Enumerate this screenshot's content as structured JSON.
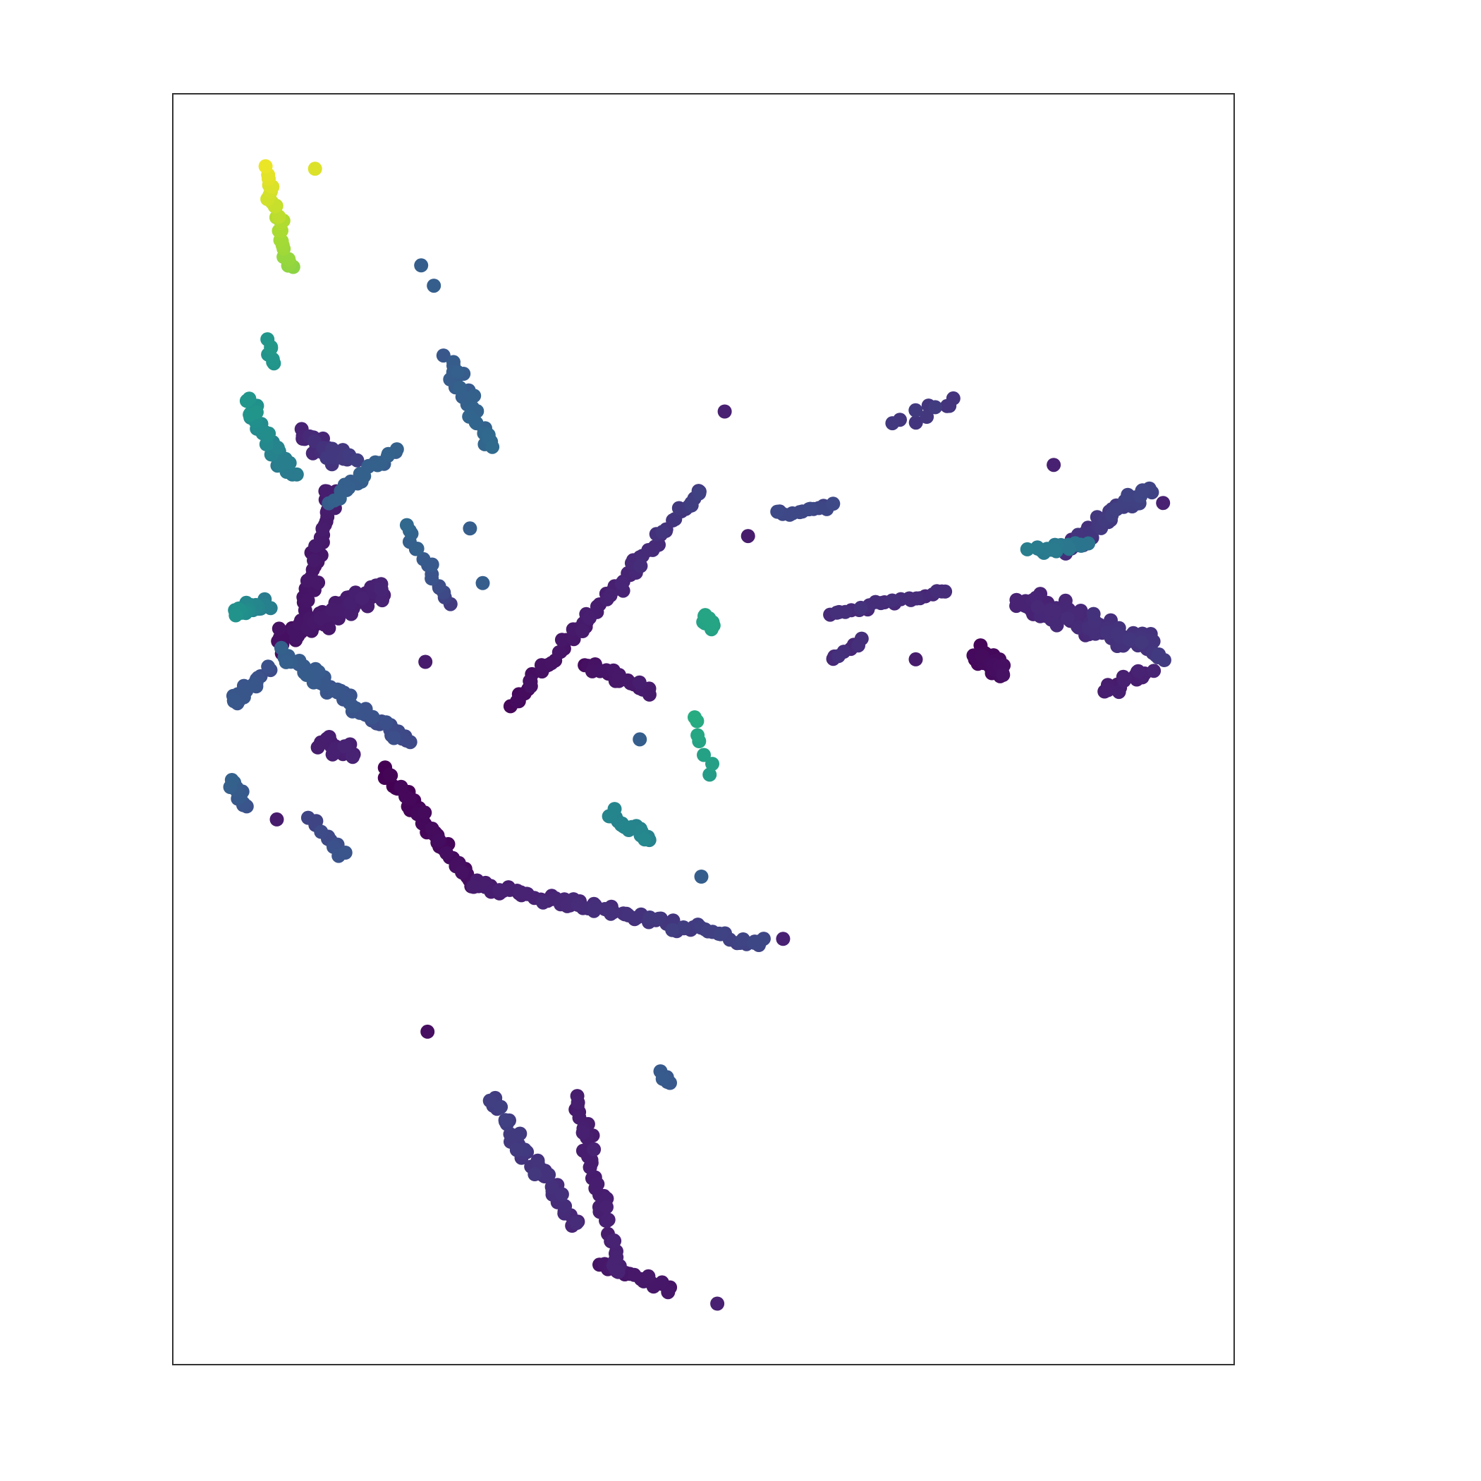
{
  "chart_data": {
    "type": "scatter",
    "title": "",
    "xlabel": "",
    "ylabel": "",
    "xlim": [
      0,
      1
    ],
    "ylim": [
      0,
      1
    ],
    "ticks": "none",
    "grid": false,
    "legend": "none",
    "colormap": "viridis",
    "colors": {
      "low": "#440154",
      "mid": "#21918c",
      "high": "#fde725",
      "axes_edge": "#333333",
      "background": "#ffffff"
    },
    "clusters": [
      {
        "name": "top-left-yellow",
        "x0": 0.087,
        "y0": 0.939,
        "x1": 0.11,
        "y1": 0.862,
        "n": 26,
        "spread": 0.007,
        "c0": 0.97,
        "c1": 0.82
      },
      {
        "name": "top-left-teal-small",
        "x0": 0.089,
        "y0": 0.807,
        "x1": 0.096,
        "y1": 0.785,
        "n": 7,
        "spread": 0.004,
        "c0": 0.52,
        "c1": 0.52
      },
      {
        "name": "left-teal-band",
        "x0": 0.07,
        "y0": 0.756,
        "x1": 0.11,
        "y1": 0.7,
        "n": 34,
        "spread": 0.01,
        "c0": 0.52,
        "c1": 0.4
      },
      {
        "name": "left-purple-upper",
        "x0": 0.12,
        "y0": 0.73,
        "x1": 0.17,
        "y1": 0.71,
        "n": 30,
        "spread": 0.01,
        "c0": 0.12,
        "c1": 0.2
      },
      {
        "name": "left-purple-stem",
        "x0": 0.15,
        "y0": 0.69,
        "x1": 0.12,
        "y1": 0.57,
        "n": 44,
        "spread": 0.009,
        "c0": 0.1,
        "c1": 0.06
      },
      {
        "name": "left-mid-blue-diag",
        "x0": 0.15,
        "y0": 0.68,
        "x1": 0.21,
        "y1": 0.72,
        "n": 22,
        "spread": 0.006,
        "c0": 0.3,
        "c1": 0.3
      },
      {
        "name": "left-dense-band",
        "x0": 0.1,
        "y0": 0.57,
        "x1": 0.2,
        "y1": 0.61,
        "n": 70,
        "spread": 0.012,
        "c0": 0.05,
        "c1": 0.12
      },
      {
        "name": "left-teal-patch",
        "x0": 0.06,
        "y0": 0.59,
        "x1": 0.09,
        "y1": 0.598,
        "n": 22,
        "spread": 0.007,
        "c0": 0.5,
        "c1": 0.42
      },
      {
        "name": "left-blue-diag",
        "x0": 0.1,
        "y0": 0.56,
        "x1": 0.22,
        "y1": 0.49,
        "n": 56,
        "spread": 0.008,
        "c0": 0.3,
        "c1": 0.22
      },
      {
        "name": "left-blue-hook",
        "x0": 0.055,
        "y0": 0.52,
        "x1": 0.09,
        "y1": 0.545,
        "n": 20,
        "spread": 0.008,
        "c0": 0.28,
        "c1": 0.24
      },
      {
        "name": "left-small-blue-drops",
        "x0": 0.055,
        "y0": 0.46,
        "x1": 0.07,
        "y1": 0.44,
        "n": 12,
        "spread": 0.006,
        "c0": 0.3,
        "c1": 0.25
      },
      {
        "name": "left-purple-lump",
        "x0": 0.14,
        "y0": 0.49,
        "x1": 0.17,
        "y1": 0.48,
        "n": 22,
        "spread": 0.01,
        "c0": 0.1,
        "c1": 0.12
      },
      {
        "name": "left-lower-twig",
        "x0": 0.13,
        "y0": 0.43,
        "x1": 0.16,
        "y1": 0.4,
        "n": 12,
        "spread": 0.006,
        "c0": 0.2,
        "c1": 0.26
      },
      {
        "name": "center-upper-blue",
        "x0": 0.26,
        "y0": 0.79,
        "x1": 0.3,
        "y1": 0.72,
        "n": 30,
        "spread": 0.009,
        "c0": 0.28,
        "c1": 0.34
      },
      {
        "name": "center-mid-teal-twig",
        "x0": 0.22,
        "y0": 0.66,
        "x1": 0.26,
        "y1": 0.6,
        "n": 16,
        "spread": 0.007,
        "c0": 0.34,
        "c1": 0.2
      },
      {
        "name": "main-s-curve-upper",
        "x0": 0.2,
        "y0": 0.47,
        "x1": 0.28,
        "y1": 0.38,
        "n": 48,
        "spread": 0.007,
        "c0": 0.0,
        "c1": 0.05
      },
      {
        "name": "main-s-curve-lower",
        "x0": 0.28,
        "y0": 0.38,
        "x1": 0.56,
        "y1": 0.33,
        "n": 90,
        "spread": 0.007,
        "c0": 0.1,
        "c1": 0.22
      },
      {
        "name": "diag-ridge",
        "x0": 0.32,
        "y0": 0.52,
        "x1": 0.5,
        "y1": 0.69,
        "n": 70,
        "spread": 0.007,
        "c0": 0.03,
        "c1": 0.2
      },
      {
        "name": "diag-ridge-branch",
        "x0": 0.39,
        "y0": 0.55,
        "x1": 0.45,
        "y1": 0.53,
        "n": 22,
        "spread": 0.006,
        "c0": 0.05,
        "c1": 0.1
      },
      {
        "name": "center-teal-spot",
        "x0": 0.5,
        "y0": 0.59,
        "x1": 0.51,
        "y1": 0.58,
        "n": 16,
        "spread": 0.006,
        "c0": 0.58,
        "c1": 0.58
      },
      {
        "name": "center-teal-low",
        "x0": 0.41,
        "y0": 0.435,
        "x1": 0.45,
        "y1": 0.41,
        "n": 20,
        "spread": 0.008,
        "c0": 0.45,
        "c1": 0.45
      },
      {
        "name": "center-green-drops",
        "x0": 0.49,
        "y0": 0.508,
        "x1": 0.505,
        "y1": 0.47,
        "n": 7,
        "spread": 0.008,
        "c0": 0.62,
        "c1": 0.55
      },
      {
        "name": "right-top-purple-chain",
        "x0": 0.57,
        "y0": 0.67,
        "x1": 0.62,
        "y1": 0.675,
        "n": 14,
        "spread": 0.004,
        "c0": 0.22,
        "c1": 0.22
      },
      {
        "name": "right-thin-dashes",
        "x0": 0.62,
        "y0": 0.59,
        "x1": 0.73,
        "y1": 0.61,
        "n": 24,
        "spread": 0.004,
        "c0": 0.15,
        "c1": 0.15
      },
      {
        "name": "right-mid-lower-dashes",
        "x0": 0.62,
        "y0": 0.555,
        "x1": 0.65,
        "y1": 0.57,
        "n": 8,
        "spread": 0.003,
        "c0": 0.15,
        "c1": 0.15
      },
      {
        "name": "right-top-small",
        "x0": 0.68,
        "y0": 0.74,
        "x1": 0.74,
        "y1": 0.76,
        "n": 10,
        "spread": 0.008,
        "c0": 0.18,
        "c1": 0.18
      },
      {
        "name": "right-upper-diag",
        "x0": 0.84,
        "y0": 0.64,
        "x1": 0.92,
        "y1": 0.69,
        "n": 48,
        "spread": 0.008,
        "c0": 0.15,
        "c1": 0.22
      },
      {
        "name": "right-teal-strip",
        "x0": 0.81,
        "y0": 0.64,
        "x1": 0.86,
        "y1": 0.645,
        "n": 20,
        "spread": 0.006,
        "c0": 0.42,
        "c1": 0.38
      },
      {
        "name": "right-main-mass",
        "x0": 0.8,
        "y0": 0.6,
        "x1": 0.93,
        "y1": 0.56,
        "n": 110,
        "spread": 0.014,
        "c0": 0.12,
        "c1": 0.18
      },
      {
        "name": "right-dense-blob",
        "x0": 0.76,
        "y0": 0.56,
        "x1": 0.78,
        "y1": 0.545,
        "n": 50,
        "spread": 0.01,
        "c0": 0.02,
        "c1": 0.05
      },
      {
        "name": "right-lower-arms",
        "x0": 0.88,
        "y0": 0.53,
        "x1": 0.92,
        "y1": 0.545,
        "n": 18,
        "spread": 0.008,
        "c0": 0.1,
        "c1": 0.12
      },
      {
        "name": "bottom-cluster-left",
        "x0": 0.3,
        "y0": 0.21,
        "x1": 0.38,
        "y1": 0.11,
        "n": 50,
        "spread": 0.01,
        "c0": 0.2,
        "c1": 0.14
      },
      {
        "name": "bottom-cluster-right",
        "x0": 0.38,
        "y0": 0.21,
        "x1": 0.42,
        "y1": 0.07,
        "n": 44,
        "spread": 0.009,
        "c0": 0.1,
        "c1": 0.12
      },
      {
        "name": "bottom-cluster-tail",
        "x0": 0.4,
        "y0": 0.08,
        "x1": 0.47,
        "y1": 0.06,
        "n": 20,
        "spread": 0.006,
        "c0": 0.08,
        "c1": 0.08
      },
      {
        "name": "bottom-upper-right",
        "x0": 0.46,
        "y0": 0.23,
        "x1": 0.47,
        "y1": 0.22,
        "n": 6,
        "spread": 0.004,
        "c0": 0.28,
        "c1": 0.28
      }
    ],
    "isolated_points": [
      {
        "x": 0.134,
        "y": 0.941,
        "c": 0.95
      },
      {
        "x": 0.234,
        "y": 0.865,
        "c": 0.3
      },
      {
        "x": 0.246,
        "y": 0.849,
        "c": 0.3
      },
      {
        "x": 0.52,
        "y": 0.75,
        "c": 0.12
      },
      {
        "x": 0.542,
        "y": 0.652,
        "c": 0.1
      },
      {
        "x": 0.83,
        "y": 0.708,
        "c": 0.12
      },
      {
        "x": 0.933,
        "y": 0.678,
        "c": 0.12
      },
      {
        "x": 0.7,
        "y": 0.555,
        "c": 0.1
      },
      {
        "x": 0.28,
        "y": 0.658,
        "c": 0.3
      },
      {
        "x": 0.292,
        "y": 0.615,
        "c": 0.3
      },
      {
        "x": 0.44,
        "y": 0.492,
        "c": 0.3
      },
      {
        "x": 0.498,
        "y": 0.384,
        "c": 0.3
      },
      {
        "x": 0.575,
        "y": 0.335,
        "c": 0.12
      },
      {
        "x": 0.24,
        "y": 0.262,
        "c": 0.05
      },
      {
        "x": 0.513,
        "y": 0.048,
        "c": 0.12
      },
      {
        "x": 0.098,
        "y": 0.429,
        "c": 0.1
      },
      {
        "x": 0.238,
        "y": 0.553,
        "c": 0.1
      }
    ]
  }
}
